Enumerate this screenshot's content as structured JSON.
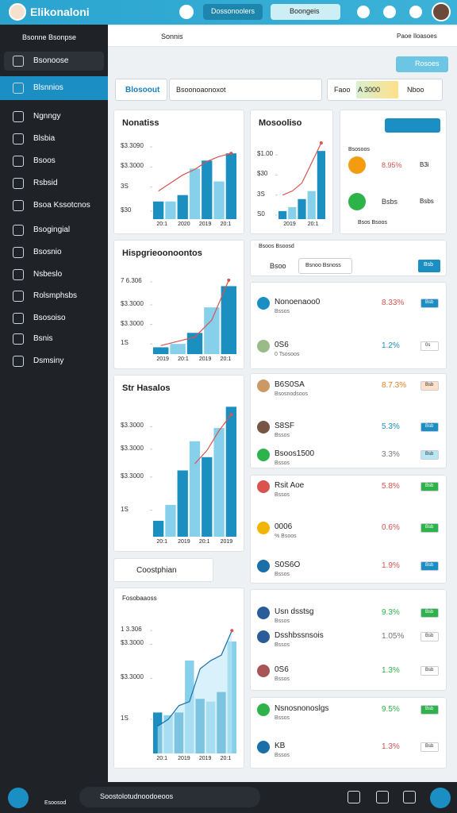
{
  "header": {
    "title": "Elikonaloni",
    "search": "Dossonoolers",
    "pill": "Boongeis"
  },
  "sidebar": {
    "title": "Bsonne Bsonpse",
    "items": [
      "Bsonoose",
      "Blsnnios",
      "Ngnngy",
      "Blsbia",
      "Bsoos",
      "Rsbsid",
      "Bsoa Kssotcnos",
      "Bsogingial",
      "Bsosnio",
      "Nsbeslo",
      "Rolsmphsbs",
      "Bsosoiso",
      "Bsnis",
      "Dsmsiny"
    ]
  },
  "toolbar": {
    "breadcrumb": "Sonnis",
    "right": "Paoe Iloasoes",
    "button": "Rosoes"
  },
  "filters": {
    "tab": "Blosoout",
    "search": "Bsoonoaonoxot",
    "options": [
      "Faoo",
      "A 3000",
      "Nboo"
    ]
  },
  "palette": [
    "#1b8fc0",
    "#86d0ec"
  ],
  "charts": [
    {
      "title": "Nonatiss",
      "ylim": [
        0,
        100
      ],
      "ticks": [
        {
          "value": 90,
          "label": "$3.3090"
        },
        {
          "value": 65,
          "label": "$3.3000"
        },
        {
          "value": 40,
          "label": "3S"
        },
        {
          "value": 10,
          "label": "$30"
        }
      ],
      "bars": [
        22,
        22,
        30,
        63,
        73,
        47,
        82
      ],
      "line": [
        35,
        45,
        55,
        62,
        72,
        78,
        82
      ],
      "xlabels": [
        "20:1",
        "2020",
        "2019",
        "20:1"
      ]
    },
    {
      "title": "Mosooliso",
      "ylim": [
        0,
        100
      ],
      "ticks": [
        {
          "value": 80,
          "label": "$1.00"
        },
        {
          "value": 55,
          "label": "$30"
        },
        {
          "value": 30,
          "label": "3S"
        },
        {
          "value": 5,
          "label": "S0"
        }
      ],
      "bars": [
        10,
        15,
        25,
        35,
        85
      ],
      "line": [
        30,
        35,
        45,
        70,
        95
      ],
      "xlabels": [
        "2019",
        "20:1"
      ]
    },
    {
      "title": "Hispgrieoonoontos",
      "ylim": [
        0,
        100
      ],
      "ticks": [
        {
          "value": 85,
          "label": "7 6.306"
        },
        {
          "value": 58,
          "label": "$3.3000"
        },
        {
          "value": 35,
          "label": "$3.3000"
        },
        {
          "value": 12,
          "label": "1S"
        }
      ],
      "bars": [
        8,
        12,
        25,
        55,
        80
      ],
      "line": [
        10,
        15,
        20,
        40,
        87
      ],
      "xlabels": [
        "2019",
        "20:1",
        "2019",
        "20:1"
      ]
    },
    {
      "title": "Str Hasalos",
      "ylim": [
        0,
        100
      ],
      "ticks": [
        {
          "value": 83,
          "label": "$3.3000"
        },
        {
          "value": 66,
          "label": "$3.3000"
        },
        {
          "value": 45,
          "label": "$3.3000"
        },
        {
          "value": 20,
          "label": "1S"
        }
      ],
      "bars": [
        12,
        24,
        50,
        72,
        60,
        82,
        98
      ],
      "line": [
        null,
        null,
        null,
        55,
        65,
        80,
        92
      ],
      "xlabels": [
        "20:1",
        "2019",
        "20:1",
        "2019"
      ]
    },
    {
      "title": "Fosobaaoss",
      "ylim": [
        0,
        100
      ],
      "ticks": [
        {
          "value": 90,
          "label": "1 3.306"
        },
        {
          "value": 80,
          "label": "$3.3000"
        },
        {
          "value": 55,
          "label": "$3.3000"
        },
        {
          "value": 25,
          "label": "1S"
        }
      ],
      "bars": [
        30,
        28,
        30,
        68,
        40,
        38,
        45,
        82
      ],
      "line": [
        20,
        25,
        35,
        38,
        62,
        68,
        72,
        90
      ],
      "xlabels": [
        "20:1",
        "2019",
        "2019",
        "20:1"
      ]
    }
  ],
  "coupon": "Coostphian",
  "summary": {
    "label": "Bsosoos",
    "rows": [
      {
        "value": "8.95%",
        "sub": "B3i"
      },
      {
        "value": "Bsbs",
        "sub": "Bsbs"
      }
    ],
    "foot": "Bsos Bsoos"
  },
  "list": {
    "title": "Bsoos Bsoosd",
    "tab": "Bsoo",
    "tab2": "Bsnoo Bsnoss",
    "button": "Bsb",
    "items": [
      {
        "name": "Nonoenaoo0",
        "sub": "Bssos",
        "value": "8.33%",
        "badge": "Bsb"
      },
      {
        "name": "0S6",
        "sub": "0 Tsosoos",
        "value": "1.2%",
        "badge": "0s"
      },
      {
        "name": "B6S0SA",
        "sub": "Bsosnodsoos",
        "value": "8.7.3%",
        "badge": "Bsb"
      },
      {
        "name": "S8SF",
        "sub": "Bssos",
        "value": "5.3%",
        "badge": "Bsb"
      },
      {
        "name": "Bsoos1500",
        "sub": "Bssos",
        "value": "3.3%",
        "badge": "Bsb"
      },
      {
        "name": "Rsit Aoe",
        "sub": "Bssos",
        "value": "5.8%",
        "badge": "Bsb"
      },
      {
        "name": "0006",
        "sub": "% Bsoos",
        "value": "0.6%",
        "badge": "Bsb"
      },
      {
        "name": "S0S6O",
        "sub": "Bssos",
        "value": "1.9%",
        "badge": "Bsb"
      },
      {
        "name": "Usn dsstsg",
        "sub": "Bssos",
        "value": "9.3%",
        "badge": "Bsb"
      },
      {
        "name": "Dsshbssnsois",
        "sub": "Bssos",
        "value": "1.05%",
        "badge": "Bsb"
      },
      {
        "name": "0S6",
        "sub": "Bssos",
        "value": "1.3%",
        "badge": "Bsb"
      },
      {
        "name": "Nsnosnonoslgs",
        "sub": "Bssos",
        "value": "9.5%",
        "badge": "Bsb"
      },
      {
        "name": "KB",
        "sub": "Bssos",
        "value": "1.3%",
        "badge": "Bsb"
      }
    ]
  },
  "footer": {
    "home": "Esoosod",
    "search": "Soostolotudnoodoeoos"
  }
}
